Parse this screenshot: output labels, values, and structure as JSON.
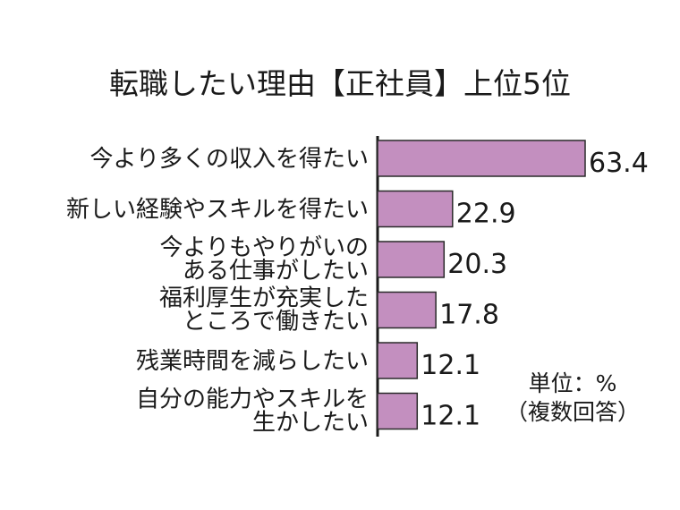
{
  "chart_data": {
    "type": "bar",
    "orientation": "horizontal",
    "title": "転職したい理由【正社員】上位5位",
    "categories": [
      "今より多くの収入を得たい",
      "新しい経験やスキルを得たい",
      "今よりもやりがいのある仕事がしたい",
      "福利厚生が充実したところで働きたい",
      "残業時間を減らしたい",
      "自分の能力やスキルを生かしたい"
    ],
    "category_lines": [
      [
        "今より多くの収入を得たい"
      ],
      [
        "新しい経験やスキルを得たい"
      ],
      [
        "今よりもやりがいの",
        "ある仕事がしたい"
      ],
      [
        "福利厚生が充実した",
        "ところで働きたい"
      ],
      [
        "残業時間を減らしたい"
      ],
      [
        "自分の能力やスキルを",
        "生かしたい"
      ]
    ],
    "value_labels": [
      "63.4",
      "22.9",
      "20.3",
      "17.8",
      "12.1",
      "12.1"
    ],
    "values": [
      63.4,
      22.9,
      20.3,
      17.8,
      12.1,
      12.1
    ],
    "xlim": [
      0,
      63.4
    ],
    "unit_note": [
      "単位：%",
      "（複数回答）"
    ],
    "bar_color": "#c38fbf",
    "bar_stroke": "#2a2a2a",
    "grid": false,
    "legend": "none"
  }
}
